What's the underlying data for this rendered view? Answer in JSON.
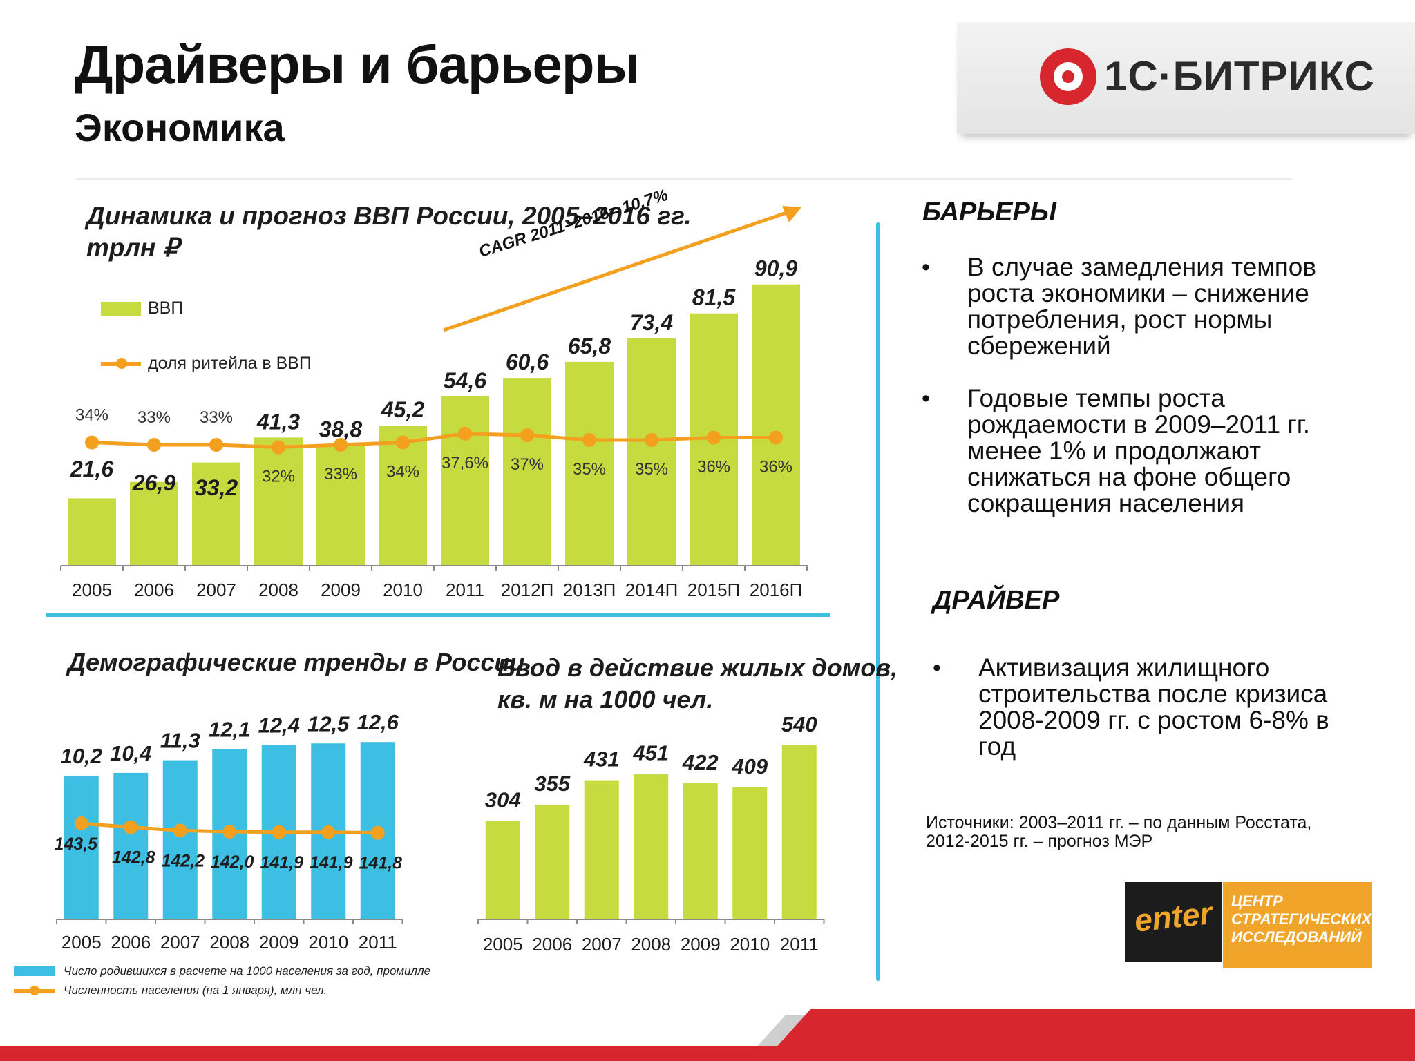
{
  "header": {
    "title": "Драйверы и барьеры",
    "subtitle": "Экономика",
    "logo_text": "1С·БИТРИКС"
  },
  "gdp": {
    "title_line1": "Динамика и прогноз ВВП России, 2005–2016 гг.",
    "title_line2": "трлн ₽",
    "legend_bar": "ВВП",
    "legend_line": "доля ритейла в ВВП",
    "cagr_label": "CAGR 2011–2016= 10,7%"
  },
  "demo": {
    "title": "Демографические тренды в России",
    "legend_bar": "Число родившихся в расчете на 1000 населения за год, промилле",
    "legend_line": "Численность населения (на 1 января), млн чел."
  },
  "housing": {
    "title_line1": "Ввод в действие жилых домов,",
    "title_line2": "кв. м на 1000 чел."
  },
  "barriers": {
    "heading": "БАРЬЕРЫ",
    "bullet_glyph": "•",
    "items": [
      {
        "lines": [
          "В случае замедления темпов",
          "роста экономики – снижение",
          "потребления, рост нормы",
          "сбережений"
        ]
      },
      {
        "lines": [
          "Годовые темпы роста",
          "рождаемости в 2009–2011 гг.",
          "менее 1% и продолжают",
          "снижаться на фоне общего",
          "сокращения населения"
        ]
      }
    ]
  },
  "driver": {
    "heading": "ДРАЙВЕР",
    "items": [
      {
        "lines": [
          "Активизация жилищного",
          "строительства после кризиса",
          "2008-2009 гг. с ростом 6-8% в",
          "год"
        ]
      }
    ]
  },
  "sources": {
    "line1": "Источники: 2003–2011 гг. – по данным Росстата,",
    "line2": "2012-2015 гг. – прогноз МЭР"
  },
  "footer_logo": {
    "enter_word": "enter",
    "center_lines": [
      "ЦЕНТР",
      "СТРАТЕГИЧЕСКИХ",
      "ИССЛЕДОВАНИЙ"
    ]
  },
  "colors": {
    "gdp_bar": "#c5db3f",
    "demo_bar": "#3dbfe3",
    "line": "#f3a01e",
    "accent_red": "#d7262e"
  },
  "chart_data": [
    {
      "id": "gdp",
      "type": "bar",
      "categories": [
        "2005",
        "2006",
        "2007",
        "2008",
        "2009",
        "2010",
        "2011",
        "2012П",
        "2013П",
        "2014П",
        "2015П",
        "2016П"
      ],
      "series": [
        {
          "name": "ВВП",
          "values": [
            21.6,
            26.9,
            33.2,
            41.3,
            38.8,
            45.2,
            54.6,
            60.6,
            65.8,
            73.4,
            81.5,
            90.9
          ],
          "labels": [
            "21,6",
            "26,9",
            "33,2",
            "41,3",
            "38,8",
            "45,2",
            "54,6",
            "60,6",
            "65,8",
            "73,4",
            "81,5",
            "90,9"
          ]
        },
        {
          "name": "доля ритейла в ВВП",
          "type": "line",
          "values": [
            34,
            33,
            33,
            32,
            33,
            34,
            37.6,
            37,
            35,
            35,
            36,
            36
          ],
          "labels": [
            "34%",
            "33%",
            "33%",
            "32%",
            "33%",
            "34%",
            "37,6%",
            "37%",
            "35%",
            "35%",
            "36%",
            "36%"
          ]
        }
      ],
      "annotation": "CAGR 2011–2016= 10,7%"
    },
    {
      "id": "demographics",
      "type": "bar",
      "categories": [
        "2005",
        "2006",
        "2007",
        "2008",
        "2009",
        "2010",
        "2011"
      ],
      "series": [
        {
          "name": "Число родившихся в расчете на 1000 населения за год, промилле",
          "values": [
            10.2,
            10.4,
            11.3,
            12.1,
            12.4,
            12.5,
            12.6
          ],
          "labels": [
            "10,2",
            "10,4",
            "11,3",
            "12,1",
            "12,4",
            "12,5",
            "12,6"
          ]
        },
        {
          "name": "Численность населения (на 1 января), млн чел.",
          "type": "line",
          "values": [
            143.5,
            142.8,
            142.2,
            142.0,
            141.9,
            141.9,
            141.8
          ],
          "labels": [
            "143,5",
            "142,8",
            "142,2",
            "142,0",
            "141,9",
            "141,9",
            "141,8"
          ]
        }
      ]
    },
    {
      "id": "housing",
      "type": "bar",
      "categories": [
        "2005",
        "2006",
        "2007",
        "2008",
        "2009",
        "2010",
        "2011"
      ],
      "values": [
        304,
        355,
        431,
        451,
        422,
        409,
        540
      ],
      "labels": [
        "304",
        "355",
        "431",
        "451",
        "422",
        "409",
        "540"
      ]
    }
  ]
}
